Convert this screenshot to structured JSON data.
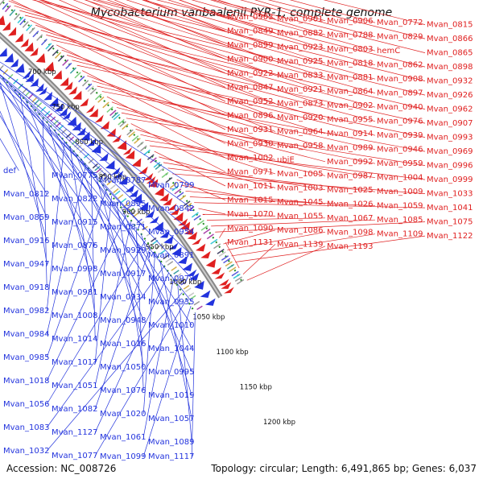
{
  "title": "Mycobacterium vanbaalenii PYR-1, complete genome",
  "footer": {
    "accession": "Accession: NC_008726",
    "summary": "Topology: circular; Length: 6,491,865 bp; Genes: 6,037"
  },
  "colors": {
    "forward": "#e02020",
    "reverse": "#2233dd",
    "backbone": "#888888",
    "guide": "#1f8a1f",
    "tick_text": "#111111"
  },
  "ticks": [
    "700 kbp",
    "750 kbp",
    "800 kbp",
    "850 kbp",
    "900 kbp",
    "950 kbp",
    "1000 kbp",
    "1050 kbp",
    "1100 kbp",
    "1150 kbp",
    "1200 kbp"
  ],
  "forward_genes": [
    "Mvan_0903",
    "Mvan_0901",
    "Mvan_0906",
    "Mvan_0772",
    "Mvan_0815",
    "Mvan_0849",
    "Mvan_0882",
    "Mvan_0788",
    "Mvan_0829",
    "Mvan_0866",
    "Mvan_0899",
    "Mvan_0923",
    "Mvan_0803",
    "hemC",
    "Mvan_0865",
    "Mvan_0900",
    "Mvan_0925",
    "Mvan_0818",
    "Mvan_0862",
    "Mvan_0898",
    "Mvan_0922",
    "Mvan_0833",
    "Mvan_0881",
    "Mvan_0908",
    "Mvan_0932",
    "Mvan_0847",
    "Mvan_0921",
    "Mvan_0864",
    "Mvan_0897",
    "Mvan_0926",
    "Mvan_0952",
    "Mvan_0873",
    "Mvan_0902",
    "Mvan_0940",
    "Mvan_0962",
    "Mvan_0896",
    "Mvan_0920",
    "Mvan_0955",
    "Mvan_0976",
    "Mvan_0907",
    "Mvan_0931",
    "Mvan_0964",
    "Mvan_0914",
    "Mvan_0939",
    "Mvan_0993",
    "Mvan_0930",
    "Mvan_0958",
    "Mvan_0989",
    "Mvan_0946",
    "Mvan_0969",
    "Mvan_1002",
    "ubiE",
    "Mvan_0992",
    "Mvan_0959",
    "Mvan_0996",
    "Mvan_0971",
    "Mvan_1005",
    "Mvan_0987",
    "Mvan_1004",
    "Mvan_0999",
    "Mvan_1011",
    "Mvan_1003",
    "Mvan_1025",
    "Mvan_1009",
    "Mvan_1033",
    "Mvan_1015",
    "Mvan_1045",
    "Mvan_1026",
    "Mvan_1059",
    "Mvan_1041",
    "Mvan_1070",
    "Mvan_1055",
    "Mvan_1067",
    "Mvan_1085",
    "Mvan_1075",
    "Mvan_1090",
    "Mvan_1086",
    "Mvan_1098",
    "Mvan_1109",
    "Mvan_1122",
    "Mvan_1131",
    "Mvan_1139",
    "Mvan_1193"
  ],
  "reverse_genes": [
    "def",
    "Mvan_0775",
    "Mvan_0787",
    "Mvan_0799",
    "Mvan_0812",
    "Mvan_0822",
    "Mvan_0895",
    "Mvan_0842",
    "Mvan_0859",
    "Mvan_0915",
    "Mvan_0871",
    "Mvan_0954",
    "Mvan_0916",
    "Mvan_0876",
    "Mvan_0929",
    "Mvan_0891",
    "Mvan_0947",
    "Mvan_0998",
    "Mvan_0917",
    "Mvan_0977",
    "Mvan_0918",
    "Mvan_0981",
    "Mvan_0934",
    "Mvan_0935",
    "Mvan_0982",
    "Mvan_1008",
    "Mvan_0948",
    "Mvan_1010",
    "Mvan_0984",
    "Mvan_1014",
    "Mvan_1016",
    "Mvan_1044",
    "Mvan_0985",
    "Mvan_1017",
    "Mvan_1050",
    "Mvan_0995",
    "Mvan_1018",
    "Mvan_1051",
    "Mvan_1076",
    "Mvan_1019",
    "Mvan_1056",
    "Mvan_1082",
    "Mvan_1020",
    "Mvan_1057",
    "Mvan_1083",
    "Mvan_1127",
    "Mvan_1061",
    "Mvan_1089",
    "Mvan_1032",
    "Mvan_1077",
    "Mvan_1099",
    "Mvan_1117"
  ]
}
